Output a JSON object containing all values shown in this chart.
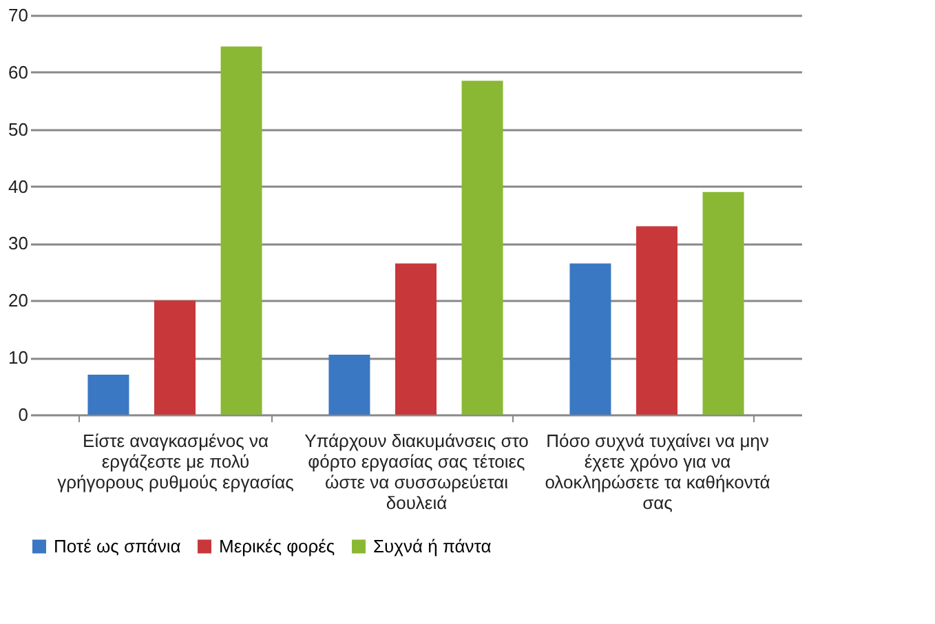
{
  "chart_data": {
    "type": "bar",
    "categories": [
      "Είστε αναγκασμένος να εργάζεστε με πολύ γρήγορους ρυθμούς εργασίας",
      "Υπάρχουν διακυμάνσεις στο φόρτο εργασίας σας τέτοιες ώστε να συσσωρεύεται δουλειά",
      "Πόσο συχνά τυχαίνει να μην έχετε χρόνο για να ολοκληρώσετε τα καθήκοντά σας"
    ],
    "series": [
      {
        "name": "Ποτέ ως σπάνια",
        "color": "#3a78c3",
        "values": [
          7,
          10.5,
          26.5
        ]
      },
      {
        "name": "Μερικές φορές",
        "color": "#c8383a",
        "values": [
          20,
          26.5,
          33
        ]
      },
      {
        "name": "Συχνά ή πάντα",
        "color": "#8ab834",
        "values": [
          64.5,
          58.5,
          39
        ]
      }
    ],
    "ylim": [
      0,
      70
    ],
    "yticks": [
      0,
      10,
      20,
      30,
      40,
      50,
      60,
      70
    ],
    "grid": "y",
    "legend": "bottom"
  }
}
